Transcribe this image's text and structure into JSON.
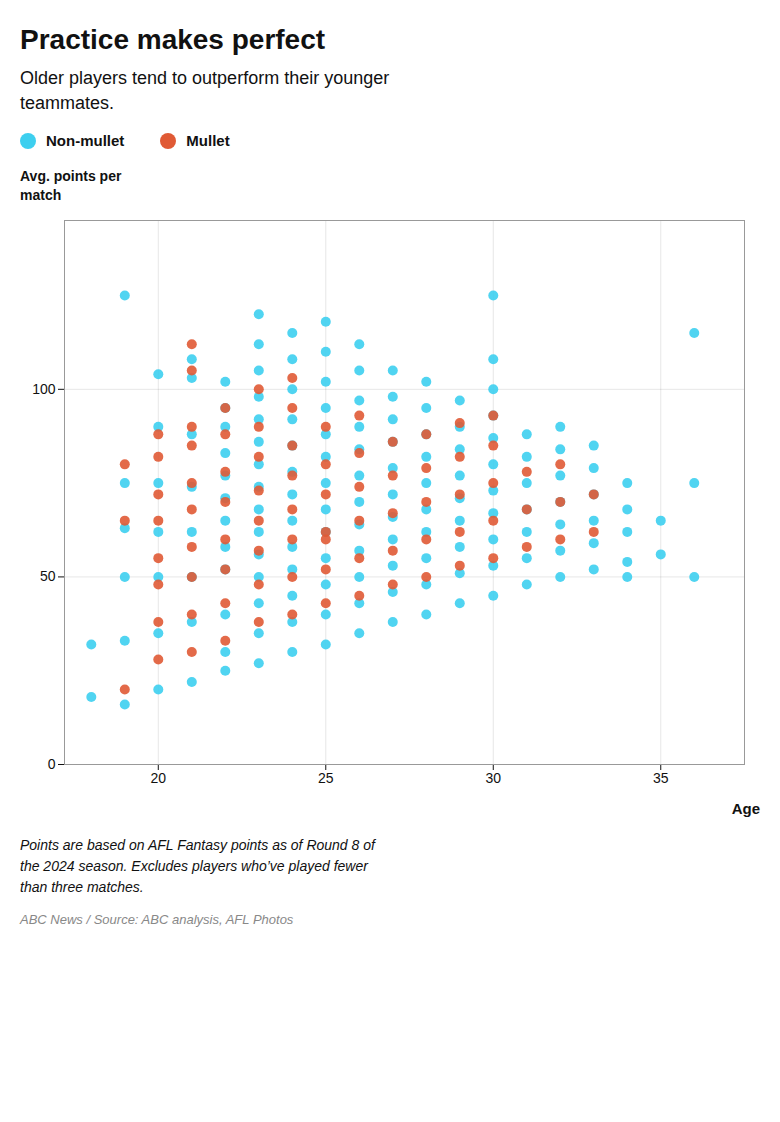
{
  "chart_data": {
    "type": "scatter",
    "title": "Practice makes perfect",
    "subtitle": "Older players tend to outperform their younger\nteammates.",
    "xlabel": "Age",
    "ylabel": "Avg. points per\nmatch",
    "footnote": "Points are based on AFL Fantasy points as of Round 8 of\nthe 2024 season. Excludes players who’ve played fewer\nthan three matches.",
    "source": "ABC News / Source: ABC analysis, AFL Photos",
    "xlim": [
      17.2,
      37.5
    ],
    "ylim": [
      0,
      145
    ],
    "xticks": [
      20,
      25,
      30,
      35
    ],
    "yticks": [
      0,
      50,
      100
    ],
    "grid": true,
    "legend": "top",
    "series": [
      {
        "name": "Non-mullet",
        "color": "#3dcfef",
        "x": [
          18,
          18,
          19,
          19,
          19,
          19,
          19,
          19,
          20,
          20,
          20,
          20,
          20,
          20,
          20,
          21,
          21,
          21,
          21,
          21,
          21,
          21,
          21,
          22,
          22,
          22,
          22,
          22,
          22,
          22,
          22,
          22,
          22,
          22,
          22,
          23,
          23,
          23,
          23,
          23,
          23,
          23,
          23,
          23,
          23,
          23,
          23,
          23,
          23,
          23,
          24,
          24,
          24,
          24,
          24,
          24,
          24,
          24,
          24,
          24,
          24,
          24,
          24,
          25,
          25,
          25,
          25,
          25,
          25,
          25,
          25,
          25,
          25,
          25,
          25,
          25,
          26,
          26,
          26,
          26,
          26,
          26,
          26,
          26,
          26,
          26,
          26,
          26,
          27,
          27,
          27,
          27,
          27,
          27,
          27,
          27,
          27,
          27,
          27,
          28,
          28,
          28,
          28,
          28,
          28,
          28,
          28,
          28,
          28,
          29,
          29,
          29,
          29,
          29,
          29,
          29,
          29,
          29,
          30,
          30,
          30,
          30,
          30,
          30,
          30,
          30,
          30,
          30,
          30,
          31,
          31,
          31,
          31,
          31,
          31,
          31,
          32,
          32,
          32,
          32,
          32,
          32,
          32,
          33,
          33,
          33,
          33,
          33,
          33,
          34,
          34,
          34,
          34,
          34,
          35,
          35,
          36,
          36,
          36
        ],
        "values": [
          18,
          32,
          16,
          33,
          50,
          63,
          75,
          125,
          20,
          35,
          50,
          62,
          75,
          90,
          104,
          22,
          38,
          50,
          62,
          74,
          88,
          103,
          108,
          25,
          40,
          52,
          65,
          77,
          90,
          102,
          30,
          58,
          71,
          83,
          95,
          27,
          43,
          56,
          68,
          80,
          92,
          105,
          120,
          35,
          50,
          62,
          74,
          86,
          98,
          112,
          30,
          45,
          58,
          72,
          85,
          100,
          115,
          38,
          52,
          65,
          78,
          92,
          108,
          32,
          48,
          62,
          75,
          88,
          102,
          118,
          40,
          55,
          68,
          82,
          95,
          110,
          35,
          50,
          64,
          77,
          90,
          105,
          43,
          57,
          70,
          84,
          97,
          112,
          38,
          53,
          66,
          79,
          92,
          105,
          46,
          60,
          72,
          86,
          98,
          40,
          55,
          68,
          82,
          95,
          48,
          62,
          75,
          88,
          102,
          43,
          58,
          71,
          84,
          97,
          51,
          65,
          77,
          90,
          45,
          60,
          73,
          87,
          100,
          125,
          53,
          67,
          80,
          93,
          108,
          48,
          62,
          75,
          88,
          55,
          68,
          82,
          50,
          64,
          77,
          90,
          57,
          70,
          84,
          52,
          65,
          79,
          85,
          59,
          72,
          54,
          68,
          75,
          50,
          62,
          56,
          65,
          50,
          75,
          115
        ]
      },
      {
        "name": "Mullet",
        "color": "#e05a35",
        "x": [
          19,
          19,
          19,
          20,
          20,
          20,
          20,
          20,
          20,
          20,
          20,
          21,
          21,
          21,
          21,
          21,
          21,
          21,
          21,
          21,
          21,
          22,
          22,
          22,
          22,
          22,
          22,
          22,
          22,
          23,
          23,
          23,
          23,
          23,
          23,
          23,
          23,
          24,
          24,
          24,
          24,
          24,
          24,
          24,
          24,
          25,
          25,
          25,
          25,
          25,
          25,
          25,
          26,
          26,
          26,
          26,
          26,
          26,
          27,
          27,
          27,
          27,
          27,
          28,
          28,
          28,
          28,
          28,
          29,
          29,
          29,
          29,
          29,
          30,
          30,
          30,
          30,
          30,
          31,
          31,
          31,
          32,
          32,
          32,
          33,
          33
        ],
        "values": [
          20,
          65,
          80,
          28,
          48,
          65,
          82,
          88,
          38,
          55,
          72,
          30,
          50,
          68,
          85,
          105,
          40,
          58,
          75,
          90,
          112,
          33,
          52,
          70,
          88,
          43,
          60,
          78,
          95,
          38,
          57,
          73,
          90,
          48,
          65,
          82,
          100,
          40,
          60,
          77,
          95,
          50,
          68,
          85,
          103,
          43,
          62,
          80,
          52,
          72,
          90,
          60,
          45,
          65,
          83,
          55,
          74,
          93,
          48,
          67,
          86,
          57,
          77,
          50,
          70,
          88,
          60,
          79,
          53,
          72,
          91,
          62,
          82,
          55,
          75,
          93,
          65,
          85,
          58,
          78,
          68,
          60,
          80,
          70,
          62,
          72
        ]
      }
    ]
  }
}
